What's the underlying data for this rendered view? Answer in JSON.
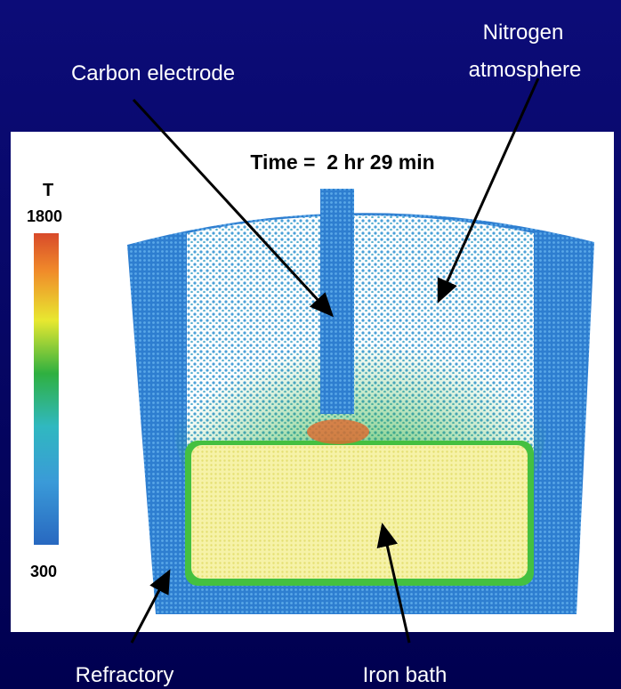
{
  "labels": {
    "carbon_electrode": "Carbon electrode",
    "nitrogen": [
      "Nitrogen",
      "atmosphere"
    ],
    "refractory": "Refractory",
    "iron_bath": "Iron bath"
  },
  "figure": {
    "time": "Time =  2 hr 29 min",
    "colorbar": {
      "title": "T",
      "max": "1800",
      "min": "300"
    }
  }
}
